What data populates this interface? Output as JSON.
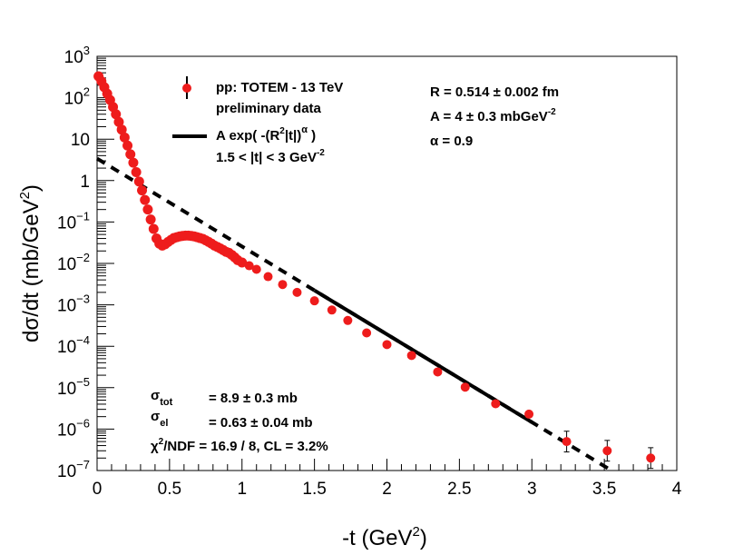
{
  "chart_data": {
    "type": "scatter",
    "x_label": {
      "main": "-t (GeV",
      "sup": "2",
      "close": ")"
    },
    "y_label": {
      "main": "dσ/dt (mb/GeV",
      "sup": "2",
      "close": ")"
    },
    "xlim": [
      0,
      4
    ],
    "ylim": [
      1e-07,
      1000
    ],
    "y_scale": "log",
    "x_ticks": [
      "0",
      "0.5",
      "1",
      "1.5",
      "2",
      "2.5",
      "3",
      "3.5",
      "4"
    ],
    "y_ticks": [
      {
        "base": "10",
        "exp": "3"
      },
      {
        "base": "10",
        "exp": "2"
      },
      {
        "base": "10",
        "exp": ""
      },
      {
        "base": "1",
        "exp": ""
      },
      {
        "base": "10",
        "exp": "−1"
      },
      {
        "base": "10",
        "exp": "−2"
      },
      {
        "base": "10",
        "exp": "−3"
      },
      {
        "base": "10",
        "exp": "−4"
      },
      {
        "base": "10",
        "exp": "−5"
      },
      {
        "base": "10",
        "exp": "−6"
      },
      {
        "base": "10",
        "exp": "−7"
      }
    ],
    "legend": {
      "placement": "top-left",
      "data_label_1": "pp: TOTEM - 13 TeV",
      "data_label_2": "preliminary data",
      "fit_label_main": "A exp( -(R",
      "fit_label_sup1": "2",
      "fit_label_mid": "|t|)",
      "fit_label_sup2": "α",
      "fit_label_close": " )",
      "range_main": "1.5 < |t| < 3  GeV",
      "range_sup": "-2"
    },
    "fit_params": {
      "r_main": "R = 0.514 ± 0.002 fm",
      "a_main": "A = 4 ± 0.3 mbGeV",
      "a_sup": "-2",
      "alpha": "α  = 0.9"
    },
    "stats": {
      "sigma_tot_sym": "σ",
      "sigma_tot_sub": "tot",
      "sigma_tot_val": "= 8.9 ± 0.3 mb",
      "sigma_el_sym": "σ",
      "sigma_el_sub": "el",
      "sigma_el_val": "= 0.63 ± 0.04 mb",
      "chi2_main": "χ",
      "chi2_sup": "2",
      "chi2_rest": "/NDF = 16.9 /  8,  CL = 3.2%"
    },
    "series": [
      {
        "name": "pp: TOTEM - 13 TeV",
        "marker_color": "#ee1c1c",
        "dense_points": [
          [
            0.01,
            330
          ],
          [
            0.03,
            250
          ],
          [
            0.05,
            180
          ],
          [
            0.07,
            125
          ],
          [
            0.09,
            88
          ],
          [
            0.11,
            60
          ],
          [
            0.13,
            40
          ],
          [
            0.15,
            26
          ],
          [
            0.17,
            17
          ],
          [
            0.19,
            11
          ],
          [
            0.21,
            7
          ],
          [
            0.23,
            4.3
          ],
          [
            0.25,
            2.7
          ],
          [
            0.27,
            1.6
          ],
          [
            0.29,
            0.95
          ],
          [
            0.31,
            0.58
          ],
          [
            0.33,
            0.34
          ],
          [
            0.35,
            0.2
          ],
          [
            0.37,
            0.115
          ],
          [
            0.39,
            0.068
          ],
          [
            0.41,
            0.04
          ],
          [
            0.43,
            0.03
          ],
          [
            0.45,
            0.027
          ],
          [
            0.47,
            0.029
          ],
          [
            0.49,
            0.033
          ],
          [
            0.51,
            0.037
          ],
          [
            0.53,
            0.041
          ],
          [
            0.55,
            0.043
          ],
          [
            0.57,
            0.045
          ],
          [
            0.59,
            0.046
          ],
          [
            0.61,
            0.047
          ],
          [
            0.63,
            0.047
          ],
          [
            0.65,
            0.046
          ],
          [
            0.67,
            0.045
          ],
          [
            0.69,
            0.043
          ],
          [
            0.71,
            0.041
          ],
          [
            0.73,
            0.039
          ],
          [
            0.75,
            0.036
          ],
          [
            0.77,
            0.033
          ],
          [
            0.79,
            0.03
          ],
          [
            0.81,
            0.027
          ],
          [
            0.83,
            0.025
          ],
          [
            0.85,
            0.023
          ],
          [
            0.87,
            0.021
          ],
          [
            0.89,
            0.019
          ],
          [
            0.91,
            0.018
          ],
          [
            0.93,
            0.016
          ],
          [
            0.95,
            0.014
          ],
          [
            0.97,
            0.012
          ],
          [
            1.0,
            0.0105
          ]
        ],
        "points": [
          {
            "x": 1.05,
            "y": 0.0088,
            "err": 0
          },
          {
            "x": 1.1,
            "y": 0.0072,
            "err": 0
          },
          {
            "x": 1.18,
            "y": 0.0048,
            "err": 0
          },
          {
            "x": 1.28,
            "y": 0.0031,
            "err": 0
          },
          {
            "x": 1.38,
            "y": 0.002,
            "err": 0
          },
          {
            "x": 1.5,
            "y": 0.00125,
            "err": 0
          },
          {
            "x": 1.62,
            "y": 0.00075,
            "err": 0
          },
          {
            "x": 1.73,
            "y": 0.00042,
            "err": 0
          },
          {
            "x": 1.86,
            "y": 0.00021,
            "err": 0
          },
          {
            "x": 2.0,
            "y": 0.00011,
            "err": 0
          },
          {
            "x": 2.17,
            "y": 6e-05,
            "err": 0
          },
          {
            "x": 2.35,
            "y": 2.4e-05,
            "err": 0
          },
          {
            "x": 2.54,
            "y": 1.03e-05,
            "err": 0
          },
          {
            "x": 2.75,
            "y": 4.1e-06,
            "err": 0
          },
          {
            "x": 2.98,
            "y": 2.3e-06,
            "err": 0
          },
          {
            "x": 3.24,
            "y": 5e-07,
            "err": 0.25
          },
          {
            "x": 3.52,
            "y": 3e-07,
            "err": 0.25
          },
          {
            "x": 3.82,
            "y": 2e-07,
            "err": 0.25
          }
        ]
      },
      {
        "name": "A exp( -(R²|t|)^α )",
        "line_color": "#000000",
        "fit_range": [
          1.5,
          3.0
        ],
        "extrapolation": [
          [
            0.0,
            3.4
          ],
          [
            3.55,
            1e-07
          ]
        ],
        "A": 4,
        "R_fm": 0.514,
        "alpha": 0.9
      }
    ]
  }
}
